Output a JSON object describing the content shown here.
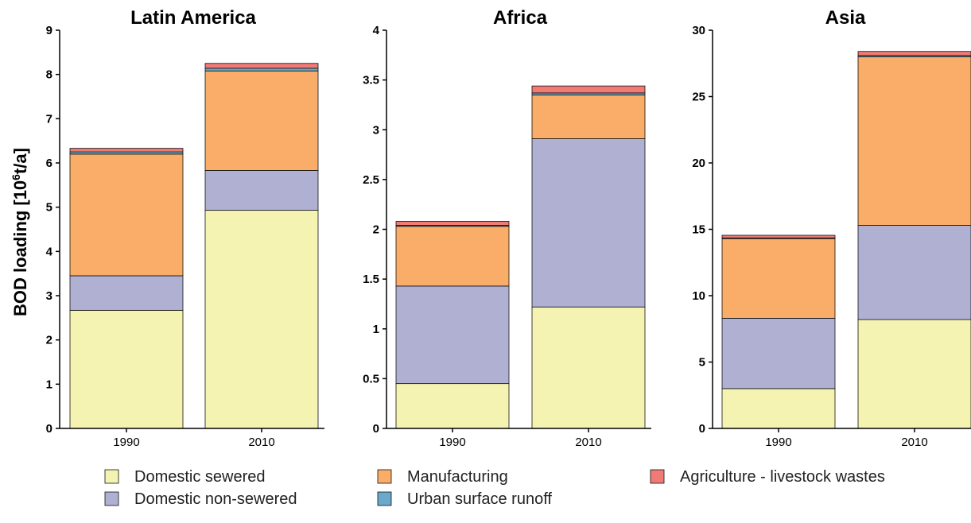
{
  "chart_data": {
    "type": "bar",
    "stacked": true,
    "ylabel_main": "BOD loading [10",
    "ylabel_sup": "6",
    "ylabel_unit": "t/a]",
    "categories": [
      "1990",
      "2010"
    ],
    "legend": [
      {
        "name": "Domestic sewered",
        "color": "#f4f3b1"
      },
      {
        "name": "Domestic non-sewered",
        "color": "#b0b0d3"
      },
      {
        "name": "Manufacturing",
        "color": "#f9ad68"
      },
      {
        "name": "Urban surface runoff",
        "color": "#6aa8cc"
      },
      {
        "name": "Agriculture - livestock wastes",
        "color": "#f07a74"
      }
    ],
    "panels": [
      {
        "title": "Latin America",
        "ylim": [
          0,
          9
        ],
        "yticks": [
          "0",
          "1",
          "2",
          "3",
          "4",
          "5",
          "6",
          "7",
          "8",
          "9"
        ],
        "series": [
          {
            "name": "Domestic sewered",
            "values": [
              2.67,
              4.93
            ]
          },
          {
            "name": "Domestic non-sewered",
            "values": [
              0.78,
              0.9
            ]
          },
          {
            "name": "Manufacturing",
            "values": [
              2.75,
              2.25
            ]
          },
          {
            "name": "Urban surface runoff",
            "values": [
              0.05,
              0.06
            ]
          },
          {
            "name": "Agriculture - livestock wastes",
            "values": [
              0.08,
              0.11
            ]
          }
        ]
      },
      {
        "title": "Africa",
        "ylim": [
          0,
          4
        ],
        "yticks": [
          "0",
          "0.5",
          "1",
          "1.5",
          "2",
          "2.5",
          "3",
          "3.5",
          "4"
        ],
        "series": [
          {
            "name": "Domestic sewered",
            "values": [
              0.45,
              1.22
            ]
          },
          {
            "name": "Domestic non-sewered",
            "values": [
              0.98,
              1.69
            ]
          },
          {
            "name": "Manufacturing",
            "values": [
              0.6,
              0.44
            ]
          },
          {
            "name": "Urban surface runoff",
            "values": [
              0.01,
              0.02
            ]
          },
          {
            "name": "Agriculture - livestock wastes",
            "values": [
              0.04,
              0.07
            ]
          }
        ]
      },
      {
        "title": "Asia",
        "ylim": [
          0,
          30
        ],
        "yticks": [
          "0",
          "5",
          "10",
          "15",
          "20",
          "25",
          "30"
        ],
        "series": [
          {
            "name": "Domestic sewered",
            "values": [
              3.0,
              8.2
            ]
          },
          {
            "name": "Domestic non-sewered",
            "values": [
              5.3,
              7.1
            ]
          },
          {
            "name": "Manufacturing",
            "values": [
              6.0,
              12.7
            ]
          },
          {
            "name": "Urban surface runoff",
            "values": [
              0.05,
              0.1
            ]
          },
          {
            "name": "Agriculture - livestock wastes",
            "values": [
              0.2,
              0.3
            ]
          }
        ]
      }
    ]
  }
}
